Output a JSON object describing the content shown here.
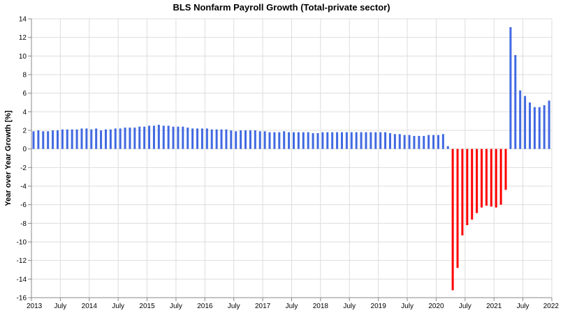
{
  "chart_data": {
    "type": "bar",
    "title": "BLS Nonfarm Payroll Growth (Total-private sector)",
    "xlabel": "",
    "ylabel": "Year over Year Growth [%]",
    "ylim": [
      -16,
      14
    ],
    "y_ticks": [
      14,
      12,
      10,
      8,
      6,
      4,
      2,
      0,
      -2,
      -4,
      -6,
      -8,
      -10,
      -12,
      -14,
      -16
    ],
    "x_range": [
      "2013-01",
      "2022-01"
    ],
    "x_ticks": [
      {
        "date": "2013-01",
        "label": "2013"
      },
      {
        "date": "2013-07",
        "label": "July"
      },
      {
        "date": "2014-01",
        "label": "2014"
      },
      {
        "date": "2014-07",
        "label": "July"
      },
      {
        "date": "2015-01",
        "label": "2015"
      },
      {
        "date": "2015-07",
        "label": "July"
      },
      {
        "date": "2016-01",
        "label": "2016"
      },
      {
        "date": "2016-07",
        "label": "July"
      },
      {
        "date": "2017-01",
        "label": "2017"
      },
      {
        "date": "2017-07",
        "label": "July"
      },
      {
        "date": "2018-01",
        "label": "2018"
      },
      {
        "date": "2018-07",
        "label": "July"
      },
      {
        "date": "2019-01",
        "label": "2019"
      },
      {
        "date": "2019-07",
        "label": "July"
      },
      {
        "date": "2020-01",
        "label": "2020"
      },
      {
        "date": "2020-07",
        "label": "July"
      },
      {
        "date": "2021-01",
        "label": "2021"
      },
      {
        "date": "2021-07",
        "label": "July"
      },
      {
        "date": "2022-01",
        "label": "2022"
      }
    ],
    "grid": true,
    "colors": {
      "positive": "#4169e1",
      "negative": "#ff0000",
      "grid": "#dddddd",
      "axis": "#888888"
    },
    "series": [
      {
        "dates": [
          "2013-01",
          "2013-02",
          "2013-03",
          "2013-04",
          "2013-05",
          "2013-06",
          "2013-07",
          "2013-08",
          "2013-09",
          "2013-10",
          "2013-11",
          "2013-12",
          "2014-01",
          "2014-02",
          "2014-03",
          "2014-04",
          "2014-05",
          "2014-06",
          "2014-07",
          "2014-08",
          "2014-09",
          "2014-10",
          "2014-11",
          "2014-12",
          "2015-01",
          "2015-02",
          "2015-03",
          "2015-04",
          "2015-05",
          "2015-06",
          "2015-07",
          "2015-08",
          "2015-09",
          "2015-10",
          "2015-11",
          "2015-12",
          "2016-01",
          "2016-02",
          "2016-03",
          "2016-04",
          "2016-05",
          "2016-06",
          "2016-07",
          "2016-08",
          "2016-09",
          "2016-10",
          "2016-11",
          "2016-12",
          "2017-01",
          "2017-02",
          "2017-03",
          "2017-04",
          "2017-05",
          "2017-06",
          "2017-07",
          "2017-08",
          "2017-09",
          "2017-10",
          "2017-11",
          "2017-12",
          "2018-01",
          "2018-02",
          "2018-03",
          "2018-04",
          "2018-05",
          "2018-06",
          "2018-07",
          "2018-08",
          "2018-09",
          "2018-10",
          "2018-11",
          "2018-12",
          "2019-01",
          "2019-02",
          "2019-03",
          "2019-04",
          "2019-05",
          "2019-06",
          "2019-07",
          "2019-08",
          "2019-09",
          "2019-10",
          "2019-11",
          "2019-12",
          "2020-01",
          "2020-02",
          "2020-03",
          "2020-04",
          "2020-05",
          "2020-06",
          "2020-07",
          "2020-08",
          "2020-09",
          "2020-10",
          "2020-11",
          "2020-12",
          "2021-01",
          "2021-02",
          "2021-03",
          "2021-04",
          "2021-05",
          "2021-06",
          "2021-07",
          "2021-08",
          "2021-09",
          "2021-10",
          "2021-11",
          "2021-12"
        ],
        "values": [
          1.9,
          2.0,
          1.9,
          1.9,
          2.0,
          2.0,
          2.1,
          2.1,
          2.1,
          2.1,
          2.2,
          2.2,
          2.1,
          2.2,
          2.0,
          2.1,
          2.1,
          2.2,
          2.2,
          2.3,
          2.3,
          2.3,
          2.4,
          2.4,
          2.5,
          2.5,
          2.6,
          2.5,
          2.5,
          2.4,
          2.4,
          2.4,
          2.3,
          2.2,
          2.2,
          2.2,
          2.2,
          2.1,
          2.1,
          2.1,
          2.1,
          2.0,
          1.9,
          2.0,
          2.0,
          2.0,
          2.0,
          1.9,
          1.9,
          1.8,
          1.8,
          1.8,
          1.9,
          1.8,
          1.8,
          1.8,
          1.8,
          1.8,
          1.7,
          1.7,
          1.8,
          1.8,
          1.8,
          1.8,
          1.8,
          1.8,
          1.8,
          1.8,
          1.8,
          1.8,
          1.8,
          1.8,
          1.8,
          1.8,
          1.7,
          1.6,
          1.6,
          1.5,
          1.5,
          1.4,
          1.4,
          1.4,
          1.5,
          1.5,
          1.5,
          1.6,
          0.3,
          -15.2,
          -12.8,
          -9.3,
          -8.2,
          -7.6,
          -6.9,
          -6.3,
          -6.1,
          -6.2,
          -6.3,
          -6.0,
          -4.4,
          13.1,
          10.1,
          6.3,
          5.7,
          5.0,
          4.5,
          4.5,
          4.7,
          5.2
        ]
      }
    ]
  }
}
